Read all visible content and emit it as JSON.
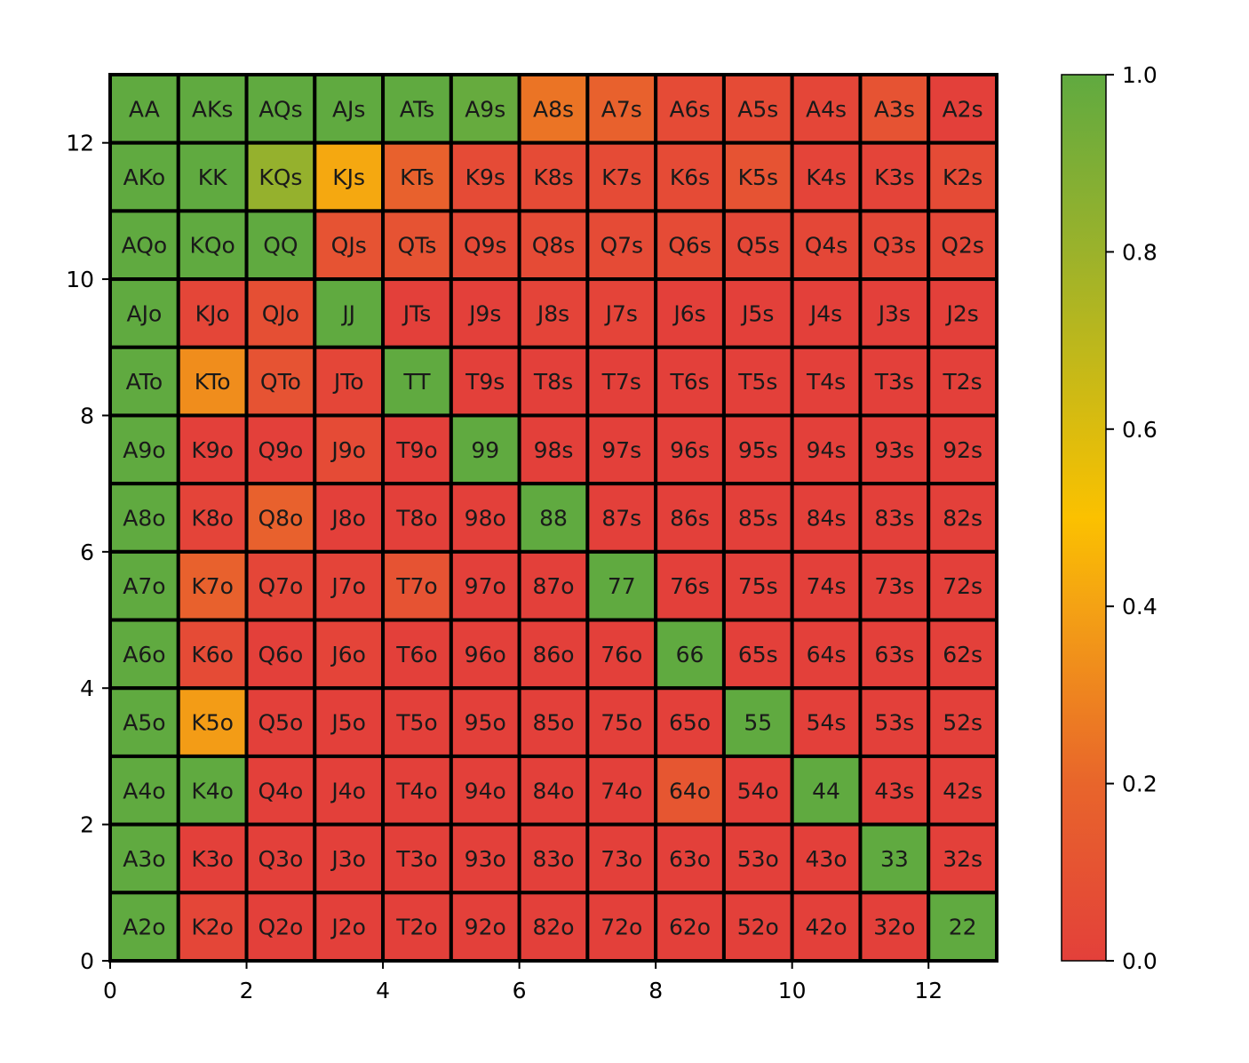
{
  "chart_data": {
    "type": "heatmap",
    "title": "",
    "xlabel": "",
    "ylabel": "",
    "xlim": [
      0,
      13
    ],
    "ylim": [
      0,
      13
    ],
    "x_ticks": [
      0,
      2,
      4,
      6,
      8,
      10,
      12
    ],
    "y_ticks": [
      0,
      2,
      4,
      6,
      8,
      10,
      12
    ],
    "grid": false,
    "rows": [
      [
        "AA",
        "AKs",
        "AQs",
        "AJs",
        "ATs",
        "A9s",
        "A8s",
        "A7s",
        "A6s",
        "A5s",
        "A4s",
        "A3s",
        "A2s"
      ],
      [
        "AKo",
        "KK",
        "KQs",
        "KJs",
        "KTs",
        "K9s",
        "K8s",
        "K7s",
        "K6s",
        "K5s",
        "K4s",
        "K3s",
        "K2s"
      ],
      [
        "AQo",
        "KQo",
        "QQ",
        "QJs",
        "QTs",
        "Q9s",
        "Q8s",
        "Q7s",
        "Q6s",
        "Q5s",
        "Q4s",
        "Q3s",
        "Q2s"
      ],
      [
        "AJo",
        "KJo",
        "QJo",
        "JJ",
        "JTs",
        "J9s",
        "J8s",
        "J7s",
        "J6s",
        "J5s",
        "J4s",
        "J3s",
        "J2s"
      ],
      [
        "ATo",
        "KTo",
        "QTo",
        "JTo",
        "TT",
        "T9s",
        "T8s",
        "T7s",
        "T6s",
        "T5s",
        "T4s",
        "T3s",
        "T2s"
      ],
      [
        "A9o",
        "K9o",
        "Q9o",
        "J9o",
        "T9o",
        "99",
        "98s",
        "97s",
        "96s",
        "95s",
        "94s",
        "93s",
        "92s"
      ],
      [
        "A8o",
        "K8o",
        "Q8o",
        "J8o",
        "T8o",
        "98o",
        "88",
        "87s",
        "86s",
        "85s",
        "84s",
        "83s",
        "82s"
      ],
      [
        "A7o",
        "K7o",
        "Q7o",
        "J7o",
        "T7o",
        "97o",
        "87o",
        "77",
        "76s",
        "75s",
        "74s",
        "73s",
        "72s"
      ],
      [
        "A6o",
        "K6o",
        "Q6o",
        "J6o",
        "T6o",
        "96o",
        "86o",
        "76o",
        "66",
        "65s",
        "64s",
        "63s",
        "62s"
      ],
      [
        "A5o",
        "K5o",
        "Q5o",
        "J5o",
        "T5o",
        "95o",
        "85o",
        "75o",
        "65o",
        "55",
        "54s",
        "53s",
        "52s"
      ],
      [
        "A4o",
        "K4o",
        "Q4o",
        "J4o",
        "T4o",
        "94o",
        "84o",
        "74o",
        "64o",
        "54o",
        "44",
        "43s",
        "42s"
      ],
      [
        "A3o",
        "K3o",
        "Q3o",
        "J3o",
        "T3o",
        "93o",
        "83o",
        "73o",
        "63o",
        "53o",
        "43o",
        "33",
        "32s"
      ],
      [
        "A2o",
        "K2o",
        "Q2o",
        "J2o",
        "T2o",
        "92o",
        "82o",
        "72o",
        "62o",
        "52o",
        "42o",
        "32o",
        "22"
      ]
    ],
    "values": [
      [
        1.0,
        1.0,
        1.0,
        1.0,
        1.0,
        0.98,
        0.25,
        0.18,
        0.06,
        0.06,
        0.03,
        0.1,
        0.0
      ],
      [
        1.0,
        1.0,
        0.82,
        0.42,
        0.18,
        0.06,
        0.06,
        0.06,
        0.06,
        0.1,
        0.02,
        0.02,
        0.06
      ],
      [
        1.0,
        1.0,
        1.0,
        0.1,
        0.1,
        0.05,
        0.06,
        0.06,
        0.06,
        0.04,
        0.04,
        0.04,
        0.04
      ],
      [
        1.0,
        0.03,
        0.08,
        1.0,
        0.0,
        0.0,
        0.02,
        0.02,
        0.0,
        0.0,
        0.0,
        0.0,
        0.0
      ],
      [
        1.0,
        0.33,
        0.1,
        0.03,
        1.0,
        0.0,
        0.0,
        0.0,
        0.0,
        0.0,
        0.0,
        0.0,
        0.0
      ],
      [
        1.0,
        0.0,
        0.0,
        0.06,
        0.0,
        1.0,
        0.0,
        0.0,
        0.0,
        0.0,
        0.0,
        0.0,
        0.0
      ],
      [
        1.0,
        0.02,
        0.18,
        0.0,
        0.0,
        0.0,
        1.0,
        0.0,
        0.0,
        0.0,
        0.0,
        0.0,
        0.0
      ],
      [
        1.0,
        0.18,
        0.03,
        0.02,
        0.1,
        0.0,
        0.0,
        1.0,
        0.0,
        0.0,
        0.0,
        0.0,
        0.0
      ],
      [
        1.0,
        0.06,
        0.0,
        0.02,
        0.0,
        0.0,
        0.0,
        0.0,
        1.0,
        0.0,
        0.0,
        0.0,
        0.0
      ],
      [
        1.0,
        0.38,
        0.0,
        0.0,
        0.0,
        0.0,
        0.0,
        0.0,
        0.0,
        1.0,
        0.0,
        0.0,
        0.0
      ],
      [
        1.0,
        1.0,
        0.0,
        0.0,
        0.0,
        0.0,
        0.0,
        0.0,
        0.12,
        0.0,
        1.0,
        0.0,
        0.0
      ],
      [
        1.0,
        0.0,
        0.0,
        0.0,
        0.0,
        0.0,
        0.0,
        0.0,
        0.0,
        0.0,
        0.0,
        1.0,
        0.0
      ],
      [
        1.0,
        0.03,
        0.0,
        0.0,
        0.0,
        0.0,
        0.0,
        0.0,
        0.0,
        0.0,
        0.0,
        0.0,
        1.0
      ]
    ],
    "colorbar": {
      "min": 0.0,
      "max": 1.0,
      "ticks": [
        "0.0",
        "0.2",
        "0.4",
        "0.6",
        "0.8",
        "1.0"
      ],
      "tick_values": [
        0.0,
        0.2,
        0.4,
        0.6,
        0.8,
        1.0
      ],
      "stops": [
        {
          "value": 0.0,
          "color": "#e3403a"
        },
        {
          "value": 0.2,
          "color": "#e8652b"
        },
        {
          "value": 0.4,
          "color": "#f4a214"
        },
        {
          "value": 0.5,
          "color": "#fbc100"
        },
        {
          "value": 0.8,
          "color": "#9bb22b"
        },
        {
          "value": 1.0,
          "color": "#60aa40"
        }
      ]
    }
  }
}
